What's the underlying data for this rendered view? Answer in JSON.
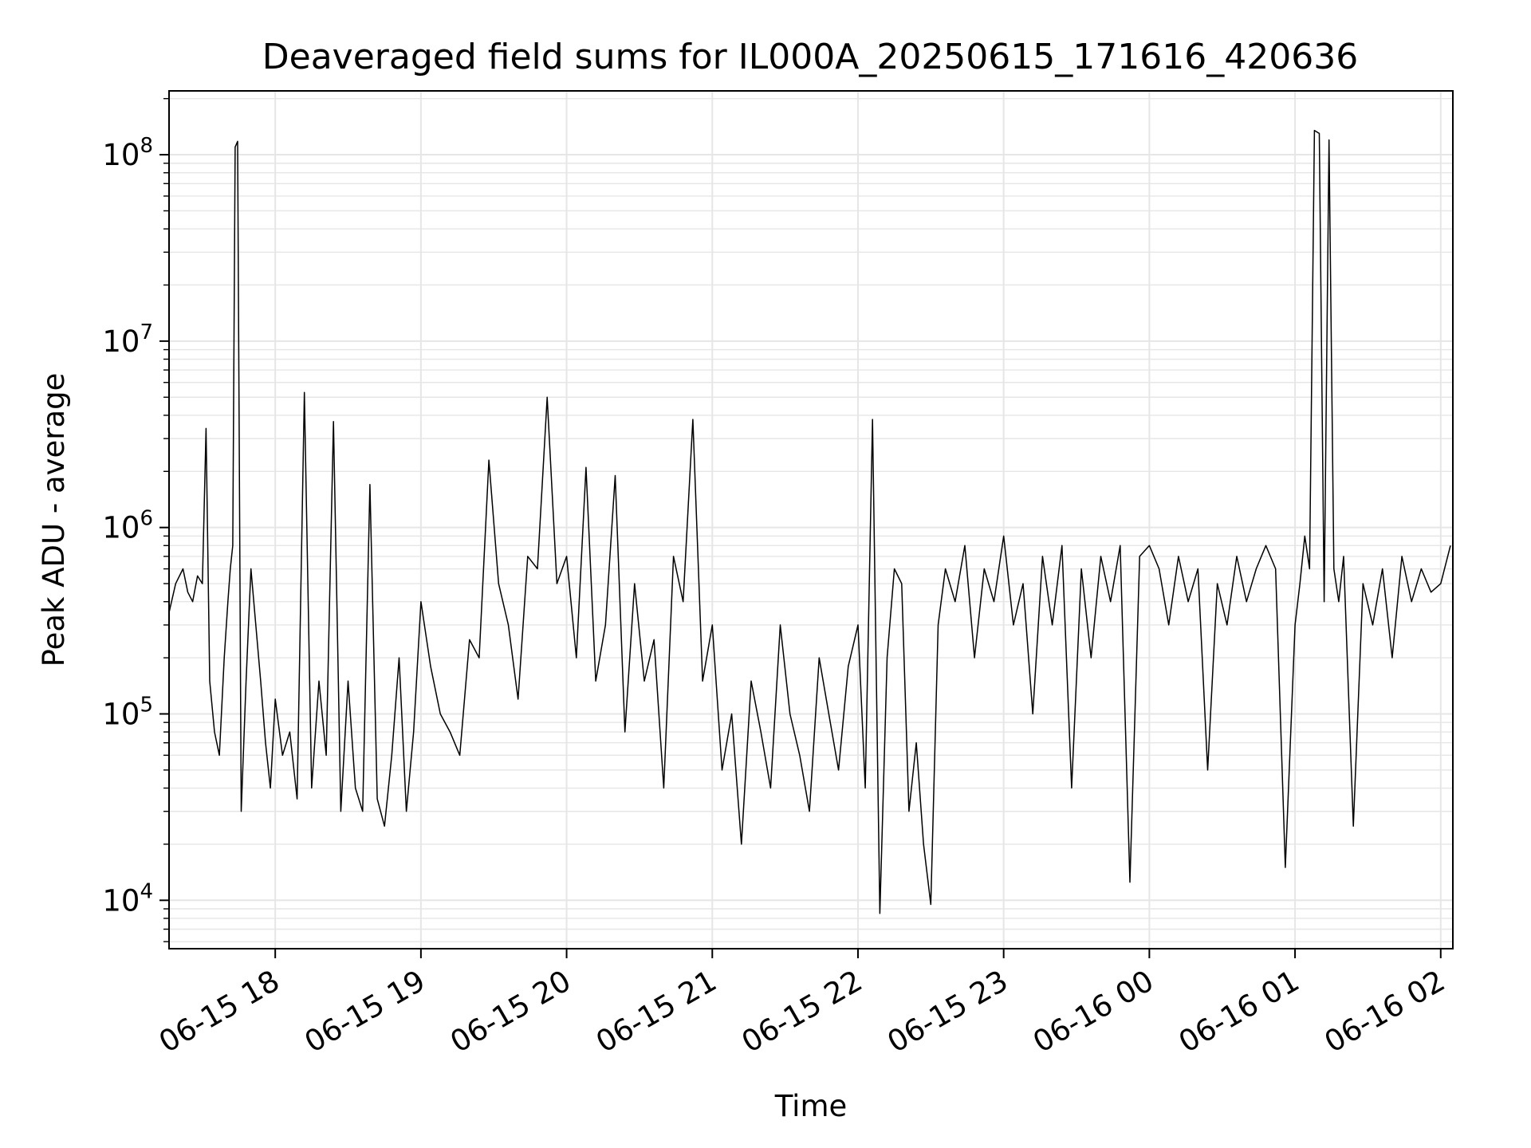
{
  "chart_data": {
    "type": "line",
    "title": "Deaveraged field sums for IL000A_20250615_171616_420636",
    "xlabel": "Time",
    "ylabel": "Peak ADU - average",
    "x_scale": "time",
    "y_scale": "log",
    "xlim": [
      "2025-06-15T17:16:16",
      "2025-06-16T02:05:00"
    ],
    "ylim": [
      5500,
      220000000
    ],
    "grid": true,
    "legend": "none",
    "line_color": "#000000",
    "grid_color": "#e6e6e6",
    "x_ticks": [
      {
        "value": "2025-06-15T18:00:00",
        "label": "06-15 18"
      },
      {
        "value": "2025-06-15T19:00:00",
        "label": "06-15 19"
      },
      {
        "value": "2025-06-15T20:00:00",
        "label": "06-15 20"
      },
      {
        "value": "2025-06-15T21:00:00",
        "label": "06-15 21"
      },
      {
        "value": "2025-06-15T22:00:00",
        "label": "06-15 22"
      },
      {
        "value": "2025-06-15T23:00:00",
        "label": "06-15 23"
      },
      {
        "value": "2025-06-16T00:00:00",
        "label": "06-16 00"
      },
      {
        "value": "2025-06-16T01:00:00",
        "label": "06-16 01"
      },
      {
        "value": "2025-06-16T02:00:00",
        "label": "06-16 02"
      }
    ],
    "y_ticks": [
      {
        "value": 10000,
        "base": "10",
        "exp": "4"
      },
      {
        "value": 100000,
        "base": "10",
        "exp": "5"
      },
      {
        "value": 1000000,
        "base": "10",
        "exp": "6"
      },
      {
        "value": 10000000,
        "base": "10",
        "exp": "7"
      },
      {
        "value": 100000000,
        "base": "10",
        "exp": "8"
      }
    ],
    "series": [
      {
        "x": [
          "2025-06-15T17:16:16",
          "2025-06-15T17:19:00",
          "2025-06-15T17:22:00",
          "2025-06-15T17:24:00",
          "2025-06-15T17:26:00",
          "2025-06-15T17:28:00",
          "2025-06-15T17:30:00",
          "2025-06-15T17:31:30",
          "2025-06-15T17:33:00",
          "2025-06-15T17:35:00",
          "2025-06-15T17:37:00",
          "2025-06-15T17:39:00",
          "2025-06-15T17:40:30",
          "2025-06-15T17:41:30",
          "2025-06-15T17:42:30",
          "2025-06-15T17:43:30",
          "2025-06-15T17:44:30",
          "2025-06-15T17:46:00",
          "2025-06-15T17:48:00",
          "2025-06-15T17:50:00",
          "2025-06-15T17:52:00",
          "2025-06-15T17:54:00",
          "2025-06-15T17:56:00",
          "2025-06-15T17:58:00",
          "2025-06-15T18:00:00",
          "2025-06-15T18:03:00",
          "2025-06-15T18:06:00",
          "2025-06-15T18:09:00",
          "2025-06-15T18:12:00",
          "2025-06-15T18:15:00",
          "2025-06-15T18:18:00",
          "2025-06-15T18:21:00",
          "2025-06-15T18:24:00",
          "2025-06-15T18:27:00",
          "2025-06-15T18:30:00",
          "2025-06-15T18:33:00",
          "2025-06-15T18:36:00",
          "2025-06-15T18:39:00",
          "2025-06-15T18:42:00",
          "2025-06-15T18:45:00",
          "2025-06-15T18:48:00",
          "2025-06-15T18:51:00",
          "2025-06-15T18:54:00",
          "2025-06-15T18:57:00",
          "2025-06-15T19:00:00",
          "2025-06-15T19:04:00",
          "2025-06-15T19:08:00",
          "2025-06-15T19:12:00",
          "2025-06-15T19:16:00",
          "2025-06-15T19:20:00",
          "2025-06-15T19:24:00",
          "2025-06-15T19:28:00",
          "2025-06-15T19:32:00",
          "2025-06-15T19:36:00",
          "2025-06-15T19:40:00",
          "2025-06-15T19:44:00",
          "2025-06-15T19:48:00",
          "2025-06-15T19:52:00",
          "2025-06-15T19:56:00",
          "2025-06-15T20:00:00",
          "2025-06-15T20:04:00",
          "2025-06-15T20:08:00",
          "2025-06-15T20:12:00",
          "2025-06-15T20:16:00",
          "2025-06-15T20:20:00",
          "2025-06-15T20:24:00",
          "2025-06-15T20:28:00",
          "2025-06-15T20:32:00",
          "2025-06-15T20:36:00",
          "2025-06-15T20:40:00",
          "2025-06-15T20:44:00",
          "2025-06-15T20:48:00",
          "2025-06-15T20:52:00",
          "2025-06-15T20:56:00",
          "2025-06-15T21:00:00",
          "2025-06-15T21:04:00",
          "2025-06-15T21:08:00",
          "2025-06-15T21:12:00",
          "2025-06-15T21:16:00",
          "2025-06-15T21:20:00",
          "2025-06-15T21:24:00",
          "2025-06-15T21:28:00",
          "2025-06-15T21:32:00",
          "2025-06-15T21:36:00",
          "2025-06-15T21:40:00",
          "2025-06-15T21:44:00",
          "2025-06-15T21:48:00",
          "2025-06-15T21:52:00",
          "2025-06-15T21:56:00",
          "2025-06-15T22:00:00",
          "2025-06-15T22:03:00",
          "2025-06-15T22:06:00",
          "2025-06-15T22:09:00",
          "2025-06-15T22:12:00",
          "2025-06-15T22:15:00",
          "2025-06-15T22:18:00",
          "2025-06-15T22:21:00",
          "2025-06-15T22:24:00",
          "2025-06-15T22:27:00",
          "2025-06-15T22:30:00",
          "2025-06-15T22:33:00",
          "2025-06-15T22:36:00",
          "2025-06-15T22:40:00",
          "2025-06-15T22:44:00",
          "2025-06-15T22:48:00",
          "2025-06-15T22:52:00",
          "2025-06-15T22:56:00",
          "2025-06-15T23:00:00",
          "2025-06-15T23:04:00",
          "2025-06-15T23:08:00",
          "2025-06-15T23:12:00",
          "2025-06-15T23:16:00",
          "2025-06-15T23:20:00",
          "2025-06-15T23:24:00",
          "2025-06-15T23:28:00",
          "2025-06-15T23:32:00",
          "2025-06-15T23:36:00",
          "2025-06-15T23:40:00",
          "2025-06-15T23:44:00",
          "2025-06-15T23:48:00",
          "2025-06-15T23:52:00",
          "2025-06-15T23:56:00",
          "2025-06-16T00:00:00",
          "2025-06-16T00:04:00",
          "2025-06-16T00:08:00",
          "2025-06-16T00:12:00",
          "2025-06-16T00:16:00",
          "2025-06-16T00:20:00",
          "2025-06-16T00:24:00",
          "2025-06-16T00:28:00",
          "2025-06-16T00:32:00",
          "2025-06-16T00:36:00",
          "2025-06-16T00:40:00",
          "2025-06-16T00:44:00",
          "2025-06-16T00:48:00",
          "2025-06-16T00:52:00",
          "2025-06-16T00:56:00",
          "2025-06-16T01:00:00",
          "2025-06-16T01:02:00",
          "2025-06-16T01:04:00",
          "2025-06-16T01:06:00",
          "2025-06-16T01:08:00",
          "2025-06-16T01:10:00",
          "2025-06-16T01:12:00",
          "2025-06-16T01:14:00",
          "2025-06-16T01:16:00",
          "2025-06-16T01:18:00",
          "2025-06-16T01:20:00",
          "2025-06-16T01:24:00",
          "2025-06-16T01:28:00",
          "2025-06-16T01:32:00",
          "2025-06-16T01:36:00",
          "2025-06-16T01:40:00",
          "2025-06-16T01:44:00",
          "2025-06-16T01:48:00",
          "2025-06-16T01:52:00",
          "2025-06-16T01:56:00",
          "2025-06-16T02:00:00",
          "2025-06-16T02:04:00"
        ],
        "y": [
          350000,
          500000,
          600000,
          450000,
          400000,
          550000,
          500000,
          3400000,
          150000,
          80000,
          60000,
          200000,
          400000,
          600000,
          800000,
          110000000,
          118000000,
          30000,
          150000,
          600000,
          300000,
          150000,
          70000,
          40000,
          120000,
          60000,
          80000,
          35000,
          5300000,
          40000,
          150000,
          60000,
          3700000,
          30000,
          150000,
          40000,
          30000,
          1700000,
          35000,
          25000,
          60000,
          200000,
          30000,
          80000,
          400000,
          180000,
          100000,
          80000,
          60000,
          250000,
          200000,
          2300000,
          500000,
          300000,
          120000,
          700000,
          600000,
          5000000,
          500000,
          700000,
          200000,
          2100000,
          150000,
          300000,
          1900000,
          80000,
          500000,
          150000,
          250000,
          40000,
          700000,
          400000,
          3800000,
          150000,
          300000,
          50000,
          100000,
          20000,
          150000,
          80000,
          40000,
          300000,
          100000,
          60000,
          30000,
          200000,
          100000,
          50000,
          180000,
          300000,
          40000,
          3800000,
          8500,
          200000,
          600000,
          500000,
          30000,
          70000,
          20000,
          9500,
          300000,
          600000,
          400000,
          800000,
          200000,
          600000,
          400000,
          900000,
          300000,
          500000,
          100000,
          700000,
          300000,
          800000,
          40000,
          600000,
          200000,
          700000,
          400000,
          800000,
          12500,
          700000,
          800000,
          600000,
          300000,
          700000,
          400000,
          600000,
          50000,
          500000,
          300000,
          700000,
          400000,
          600000,
          800000,
          600000,
          15000,
          300000,
          500000,
          900000,
          600000,
          135000000,
          130000000,
          400000,
          120000000,
          600000,
          400000,
          700000,
          25000,
          500000,
          300000,
          600000,
          200000,
          700000,
          400000,
          600000,
          450000,
          500000,
          800000
        ]
      }
    ]
  }
}
